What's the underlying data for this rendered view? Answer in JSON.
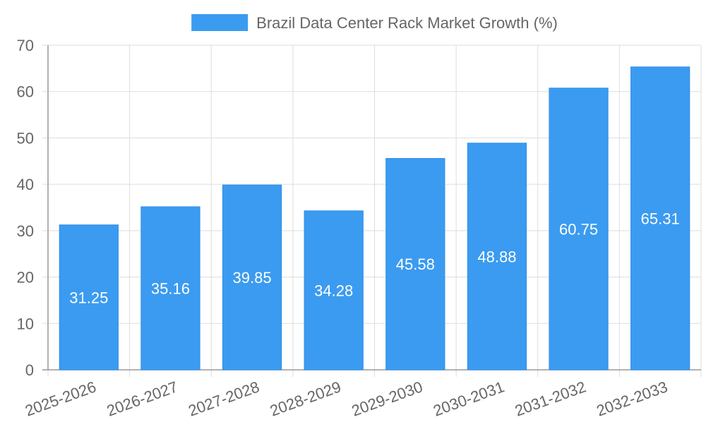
{
  "chart_data": {
    "type": "bar",
    "title": "",
    "legend": {
      "label": "Brazil Data Center Rack Market  Growth (%)",
      "position": "top-center",
      "color": "#3b9bf0"
    },
    "categories": [
      "2025-2026",
      "2026-2027",
      "2027-2028",
      "2028-2029",
      "2029-2030",
      "2030-2031",
      "2031-2032",
      "2032-2033"
    ],
    "series": [
      {
        "name": "Brazil Data Center Rack Market  Growth (%)",
        "values": [
          31.25,
          35.16,
          39.85,
          34.28,
          45.58,
          48.88,
          60.75,
          65.31
        ],
        "color": "#3b9bf0"
      }
    ],
    "data_labels": [
      "31.25",
      "35.16",
      "39.85",
      "34.28",
      "45.58",
      "48.88",
      "60.75",
      "65.31"
    ],
    "xlabel": "",
    "ylabel": "",
    "ylim": [
      0,
      70
    ],
    "yticks": [
      0,
      10,
      20,
      30,
      40,
      50,
      60,
      70
    ],
    "grid": true
  }
}
